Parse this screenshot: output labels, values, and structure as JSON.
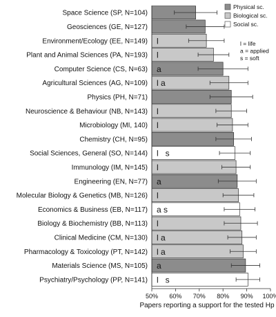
{
  "chart_data": {
    "type": "bar",
    "orientation": "horizontal",
    "title": "",
    "xlabel": "Papers reporting a support for the tested Hp",
    "ylabel": "",
    "xlim": [
      50,
      100
    ],
    "xticks": [
      50,
      60,
      70,
      80,
      90,
      100
    ],
    "xtick_labels": [
      "50%",
      "60%",
      "70%",
      "80%",
      "90%",
      "100%"
    ],
    "grid": false,
    "legend_position": "top-right",
    "legend": [
      {
        "key": "physical",
        "label": "Physical sc.",
        "color": "#8c8c8c"
      },
      {
        "key": "biological",
        "label": "Biological sc.",
        "color": "#c8c8c8"
      },
      {
        "key": "social",
        "label": "Social sc.",
        "color": "#ffffff"
      }
    ],
    "annotation_key": [
      "l = life",
      "a = applied",
      "s = soft"
    ],
    "categories": [
      {
        "label": "Space Science (SP, N=104)",
        "value": 68.5,
        "err": 9.0,
        "group": "physical",
        "annot": ""
      },
      {
        "label": "Geosciences (GE, N=127)",
        "value": 72.5,
        "err": 8.0,
        "group": "physical",
        "annot": ""
      },
      {
        "label": "Environment/Ecology (EE, N=149)",
        "value": 73.0,
        "err": 7.5,
        "group": "biological",
        "annot": "l"
      },
      {
        "label": "Plant and Animal Sciences (PA, N=193)",
        "value": 76.0,
        "err": 6.5,
        "group": "biological",
        "annot": "l"
      },
      {
        "label": "Computer Science (CS, N=63)",
        "value": 80.0,
        "err": 10.5,
        "group": "physical",
        "annot": "a"
      },
      {
        "label": "Agricultural Sciences (AG, N=109)",
        "value": 82.5,
        "err": 8.0,
        "group": "biological",
        "annot": "l a"
      },
      {
        "label": "Physics (PH, N=71)",
        "value": 83.5,
        "err": 9.0,
        "group": "physical",
        "annot": ""
      },
      {
        "label": "Neuroscience & Behaviour (NB, N=143)",
        "value": 83.5,
        "err": 6.5,
        "group": "biological",
        "annot": "l"
      },
      {
        "label": "Microbiology (MI, 140)",
        "value": 84.0,
        "err": 6.5,
        "group": "biological",
        "annot": "l"
      },
      {
        "label": "Chemistry (CH, N=95)",
        "value": 84.5,
        "err": 7.5,
        "group": "physical",
        "annot": ""
      },
      {
        "label": "Social Sciences, General (SO, N=144)",
        "value": 85.0,
        "err": 6.5,
        "group": "social",
        "annot": "l   s"
      },
      {
        "label": "Immunology (IM, N=145)",
        "value": 85.5,
        "err": 6.0,
        "group": "biological",
        "annot": "l"
      },
      {
        "label": "Engineering (EN, N=77)",
        "value": 86.0,
        "err": 8.0,
        "group": "physical",
        "annot": "a"
      },
      {
        "label": "Molecular Biology & Genetics (MB, N=126)",
        "value": 86.5,
        "err": 6.5,
        "group": "biological",
        "annot": "l"
      },
      {
        "label": "Economics & Business (EB, N=117)",
        "value": 87.0,
        "err": 6.5,
        "group": "social",
        "annot": "a s"
      },
      {
        "label": "Biology & Biochemistry (BB, N=113)",
        "value": 87.5,
        "err": 7.0,
        "group": "biological",
        "annot": "l"
      },
      {
        "label": "Clinical Medicine (CM, N=130)",
        "value": 88.0,
        "err": 6.0,
        "group": "biological",
        "annot": "l a"
      },
      {
        "label": "Pharmacology & Toxicology (PT, N=142)",
        "value": 88.5,
        "err": 5.5,
        "group": "biological",
        "annot": "l a"
      },
      {
        "label": "Materials Science (MS, N=105)",
        "value": 89.5,
        "err": 6.0,
        "group": "physical",
        "annot": "a"
      },
      {
        "label": "Psychiatry/Psychology (PP, N=141)",
        "value": 90.5,
        "err": 5.0,
        "group": "social",
        "annot": "l   s"
      }
    ]
  }
}
